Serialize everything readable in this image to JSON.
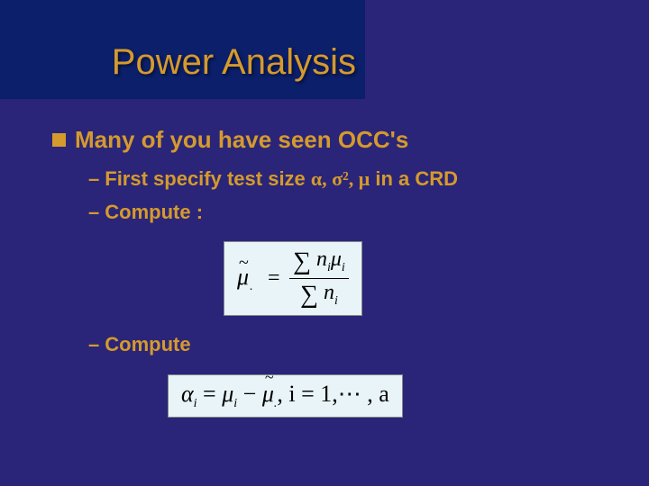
{
  "colors": {
    "slide_bg": "#2a2578",
    "title_band_bg": "#0b1f6b",
    "title_text": "#d59a2d",
    "body_text": "#d59a2d",
    "bullet_fill": "#d59a2d",
    "formula_box_bg": "#e8f4f8",
    "formula_box_border": "#888888",
    "formula_text": "#000000"
  },
  "typography": {
    "title_fontsize": 40,
    "bullet_fontsize": 26,
    "sub_fontsize": 22,
    "formula_fontsize": 24
  },
  "title": "Power Analysis",
  "bullet": {
    "label": "Many of you have seen OCC's"
  },
  "sub1": {
    "prefix": "First specify test size ",
    "symbols": "α, σ², μ",
    "suffix": " in a CRD"
  },
  "sub2": {
    "label": "Compute :"
  },
  "sub3": {
    "label": "Compute"
  },
  "formula1": {
    "lhs_symbol": "μ",
    "lhs_tilde": "~",
    "lhs_subdot": ".",
    "eq": "=",
    "num": "∑ nᵢμᵢ",
    "den": "∑ nᵢ",
    "num_sigma": "∑",
    "num_n": "n",
    "num_i": "i",
    "num_mu": "μ",
    "den_sigma": "∑",
    "den_n": "n",
    "den_i": "i"
  },
  "formula2": {
    "alpha": "α",
    "i": "i",
    "eq1": " = ",
    "mu": "μ",
    "minus": " − ",
    "mutilde": "μ",
    "tilde": "~",
    "dot": ".",
    "comma_i": ", i = 1,",
    "ellipsis": "⋯",
    "tail": " , a"
  }
}
